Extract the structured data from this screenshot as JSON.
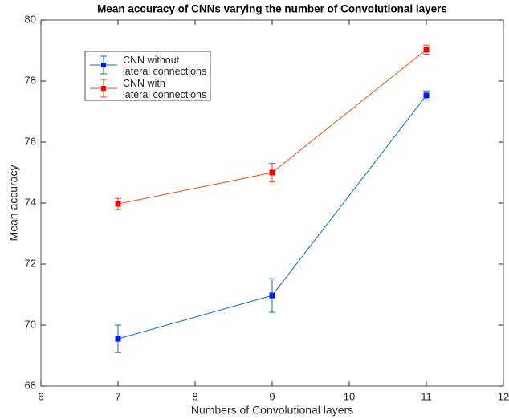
{
  "chart_data": {
    "type": "line",
    "title": "Mean accuracy of CNNs varying the number of Convolutional layers",
    "xlabel": "Numbers of Convolutional layers",
    "ylabel": "Mean accuracy",
    "x": [
      7,
      9,
      11
    ],
    "series": [
      {
        "name": "CNN without\nlateral connections",
        "color": "#0072bd",
        "marker_color": "#0019ff",
        "values": [
          69.55,
          70.97,
          77.53
        ],
        "errors": [
          0.45,
          0.55,
          0.15
        ]
      },
      {
        "name": "CNN with\nlateral connections",
        "color": "#d95319",
        "marker_color": "#ff0000",
        "values": [
          73.97,
          75.0,
          79.03
        ],
        "errors": [
          0.18,
          0.3,
          0.15
        ]
      }
    ],
    "xlim": [
      6,
      12
    ],
    "xticks": [
      6,
      7,
      8,
      9,
      10,
      11,
      12
    ],
    "ylim": [
      68,
      80
    ],
    "yticks": [
      68,
      70,
      72,
      74,
      76,
      78,
      80
    ],
    "grid": false,
    "legend_position": "upper left"
  }
}
